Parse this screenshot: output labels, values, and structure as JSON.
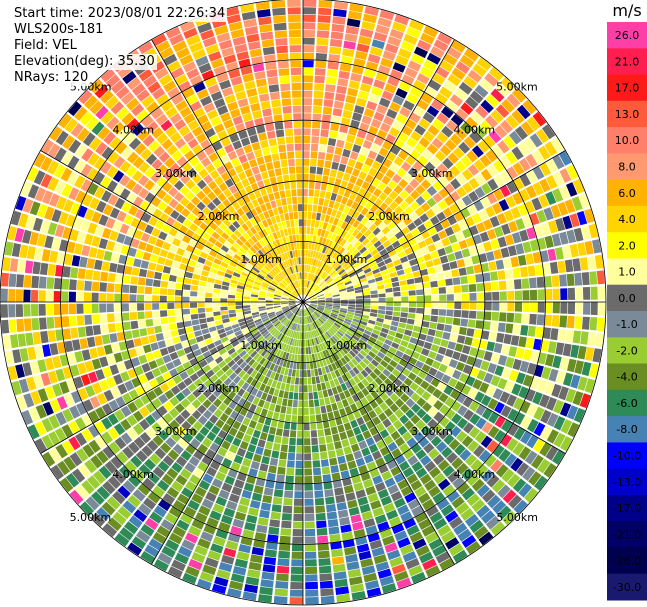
{
  "header": {
    "start_time": "Start time: 2023/08/01 22:26:34",
    "instrument": "WLS200s-181",
    "field": "Field: VEL",
    "elevation": "Elevation(deg): 35.30",
    "nrays": "NRays: 120"
  },
  "colorbar": {
    "unit": "m/s",
    "ticks": [
      "26.0",
      "21.0",
      "17.0",
      "13.0",
      "10.0",
      "8.0",
      "6.0",
      "4.0",
      "2.0",
      "1.0",
      "0.0",
      "-1.0",
      "-2.0",
      "-4.0",
      "-6.0",
      "-8.0",
      "-10.0",
      "-13.0",
      "-17.0",
      "-21.0",
      "-26.0",
      "-30.0"
    ],
    "colors": [
      "#ff3fa8",
      "#ff1f4f",
      "#ff1a1a",
      "#ff5a3c",
      "#ff7f6a",
      "#ff9a70",
      "#ffb300",
      "#ffd400",
      "#ffff00",
      "#ffff9e",
      "#6b6b6b",
      "#7a8a99",
      "#9acd32",
      "#6b8e23",
      "#2e8b57",
      "#4682b4",
      "#0000ff",
      "#0000cd",
      "#00008b",
      "#000066",
      "#000050",
      "#191970"
    ]
  },
  "chart_data": {
    "type": "ppi-radar-velocity",
    "field": "VEL",
    "units": "m/s",
    "nrays": 120,
    "elevation_deg": 35.3,
    "range_rings_km": [
      1.0,
      2.0,
      3.0,
      4.0,
      5.0
    ],
    "ring_labels": [
      "1.00km",
      "2.00km",
      "3.00km",
      "4.00km",
      "5.00km"
    ],
    "max_range_km": 5.0,
    "velocity_range": [
      -30.0,
      26.0
    ],
    "description_sectors": [
      {
        "azimuth_range_deg": [
          270,
          90
        ],
        "dominant_velocity_ms": 3.0
      },
      {
        "azimuth_range_deg": [
          90,
          270
        ],
        "dominant_velocity_ms": -4.0
      }
    ]
  }
}
